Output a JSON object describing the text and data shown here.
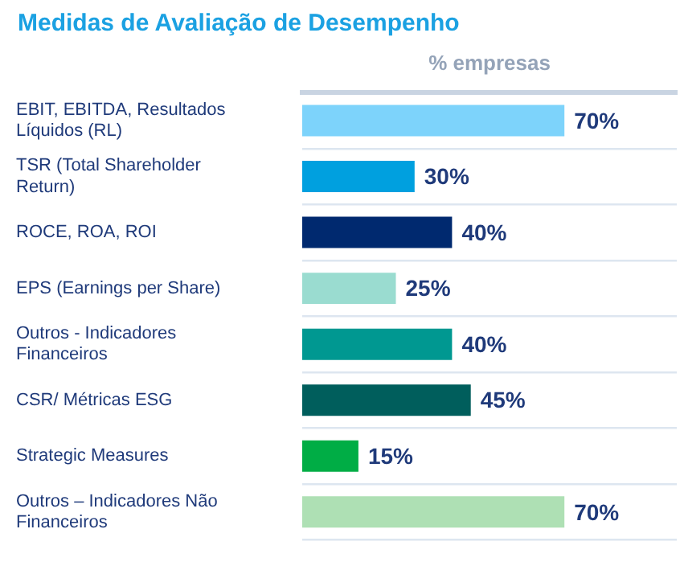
{
  "chart_data": {
    "type": "bar",
    "orientation": "horizontal",
    "title": "Medidas de Avaliação de Desempenho",
    "xlabel": "% empresas",
    "categories": [
      "EBIT, EBITDA, Resultados Líquidos (RL)",
      "TSR (Total Shareholder Return)",
      "ROCE, ROA, ROI",
      "EPS (Earnings per Share)",
      "Outros - Indicadores Financeiros",
      "CSR/ Métricas ESG",
      "Strategic Measures",
      "Outros – Indicadores Não Financeiros"
    ],
    "values": [
      70,
      30,
      40,
      25,
      40,
      45,
      15,
      70
    ],
    "colors": [
      "#7dd3fb",
      "#00a0df",
      "#00296f",
      "#9adcd0",
      "#009891",
      "#005e5c",
      "#00ad45",
      "#aee0b4"
    ],
    "value_labels": [
      "70%",
      "30%",
      "40%",
      "25%",
      "40%",
      "45%",
      "15%",
      "70%"
    ],
    "xlim": [
      0,
      100
    ],
    "tick_labels": "y",
    "grid": "y",
    "legend": false
  }
}
